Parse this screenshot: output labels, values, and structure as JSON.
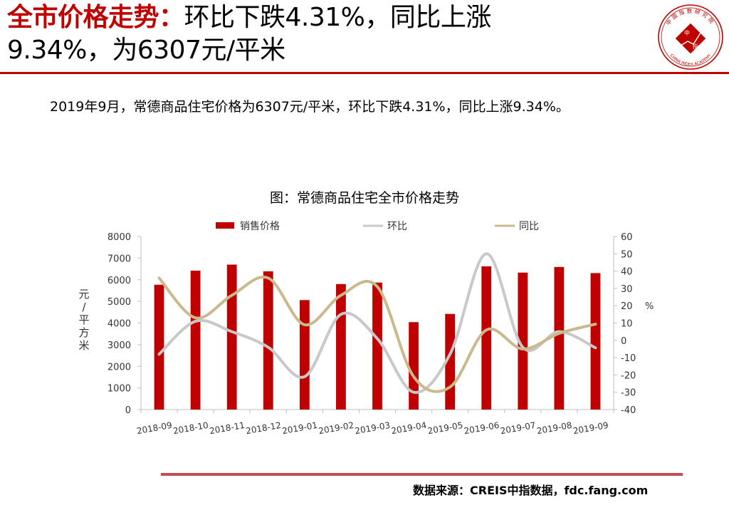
{
  "headline": {
    "highlight": "全市价格走势：",
    "line1": "环比下跌4.31%，同比上涨",
    "line2": "9.34%，为6307元/平米"
  },
  "logo": {
    "top_text": "中国指数研究院",
    "center_text_1": "中",
    "center_text_2": "指",
    "bottom_text": "CHINA INDEX ACADEMY",
    "color": "#c00000"
  },
  "summary": "2019年9月，常德商品住宅价格为6307元/平米，环比下跌4.31%，同比上涨9.34%。",
  "source": "数据来源：CREIS中指数据，fdc.fang.com",
  "chart_data": {
    "type": "bar",
    "title": "图：常德商品住宅全市价格走势",
    "categories": [
      "2018-09",
      "2018-10",
      "2018-11",
      "2018-12",
      "2019-01",
      "2019-02",
      "2019-03",
      "2019-04",
      "2019-05",
      "2019-06",
      "2019-07",
      "2019-08",
      "2019-09"
    ],
    "series": [
      {
        "name": "销售价格",
        "type": "bar",
        "axis": "left",
        "color": "#c00000",
        "values": [
          5770,
          6420,
          6700,
          6390,
          5060,
          5800,
          5870,
          4040,
          4420,
          6620,
          6330,
          6590,
          6307
        ]
      },
      {
        "name": "环比",
        "type": "line",
        "axis": "right",
        "color": "#c8c8c8",
        "values": [
          -8,
          11,
          5,
          -4,
          -21,
          15,
          1,
          -30,
          -8,
          50,
          -4,
          5,
          -4.31
        ]
      },
      {
        "name": "同比",
        "type": "line",
        "axis": "right",
        "color": "#c9b98c",
        "values": [
          36,
          13,
          26,
          36,
          9,
          26,
          31,
          -21,
          -27,
          6,
          -5,
          4,
          9.34
        ]
      }
    ],
    "ylabel_left_chars": [
      "元",
      "/",
      "平",
      "方",
      "米"
    ],
    "ylabel_right": "%",
    "ylim_left": [
      0,
      8000
    ],
    "yticks_left": [
      "0",
      "1000",
      "2000",
      "3000",
      "4000",
      "5000",
      "6000",
      "7000",
      "8000"
    ],
    "ylim_right": [
      -40,
      60
    ],
    "yticks_right": [
      "-40",
      "-30",
      "-20",
      "-10",
      "0",
      "10",
      "20",
      "30",
      "40",
      "50",
      "60"
    ],
    "legend_position": "top",
    "grid": false
  }
}
